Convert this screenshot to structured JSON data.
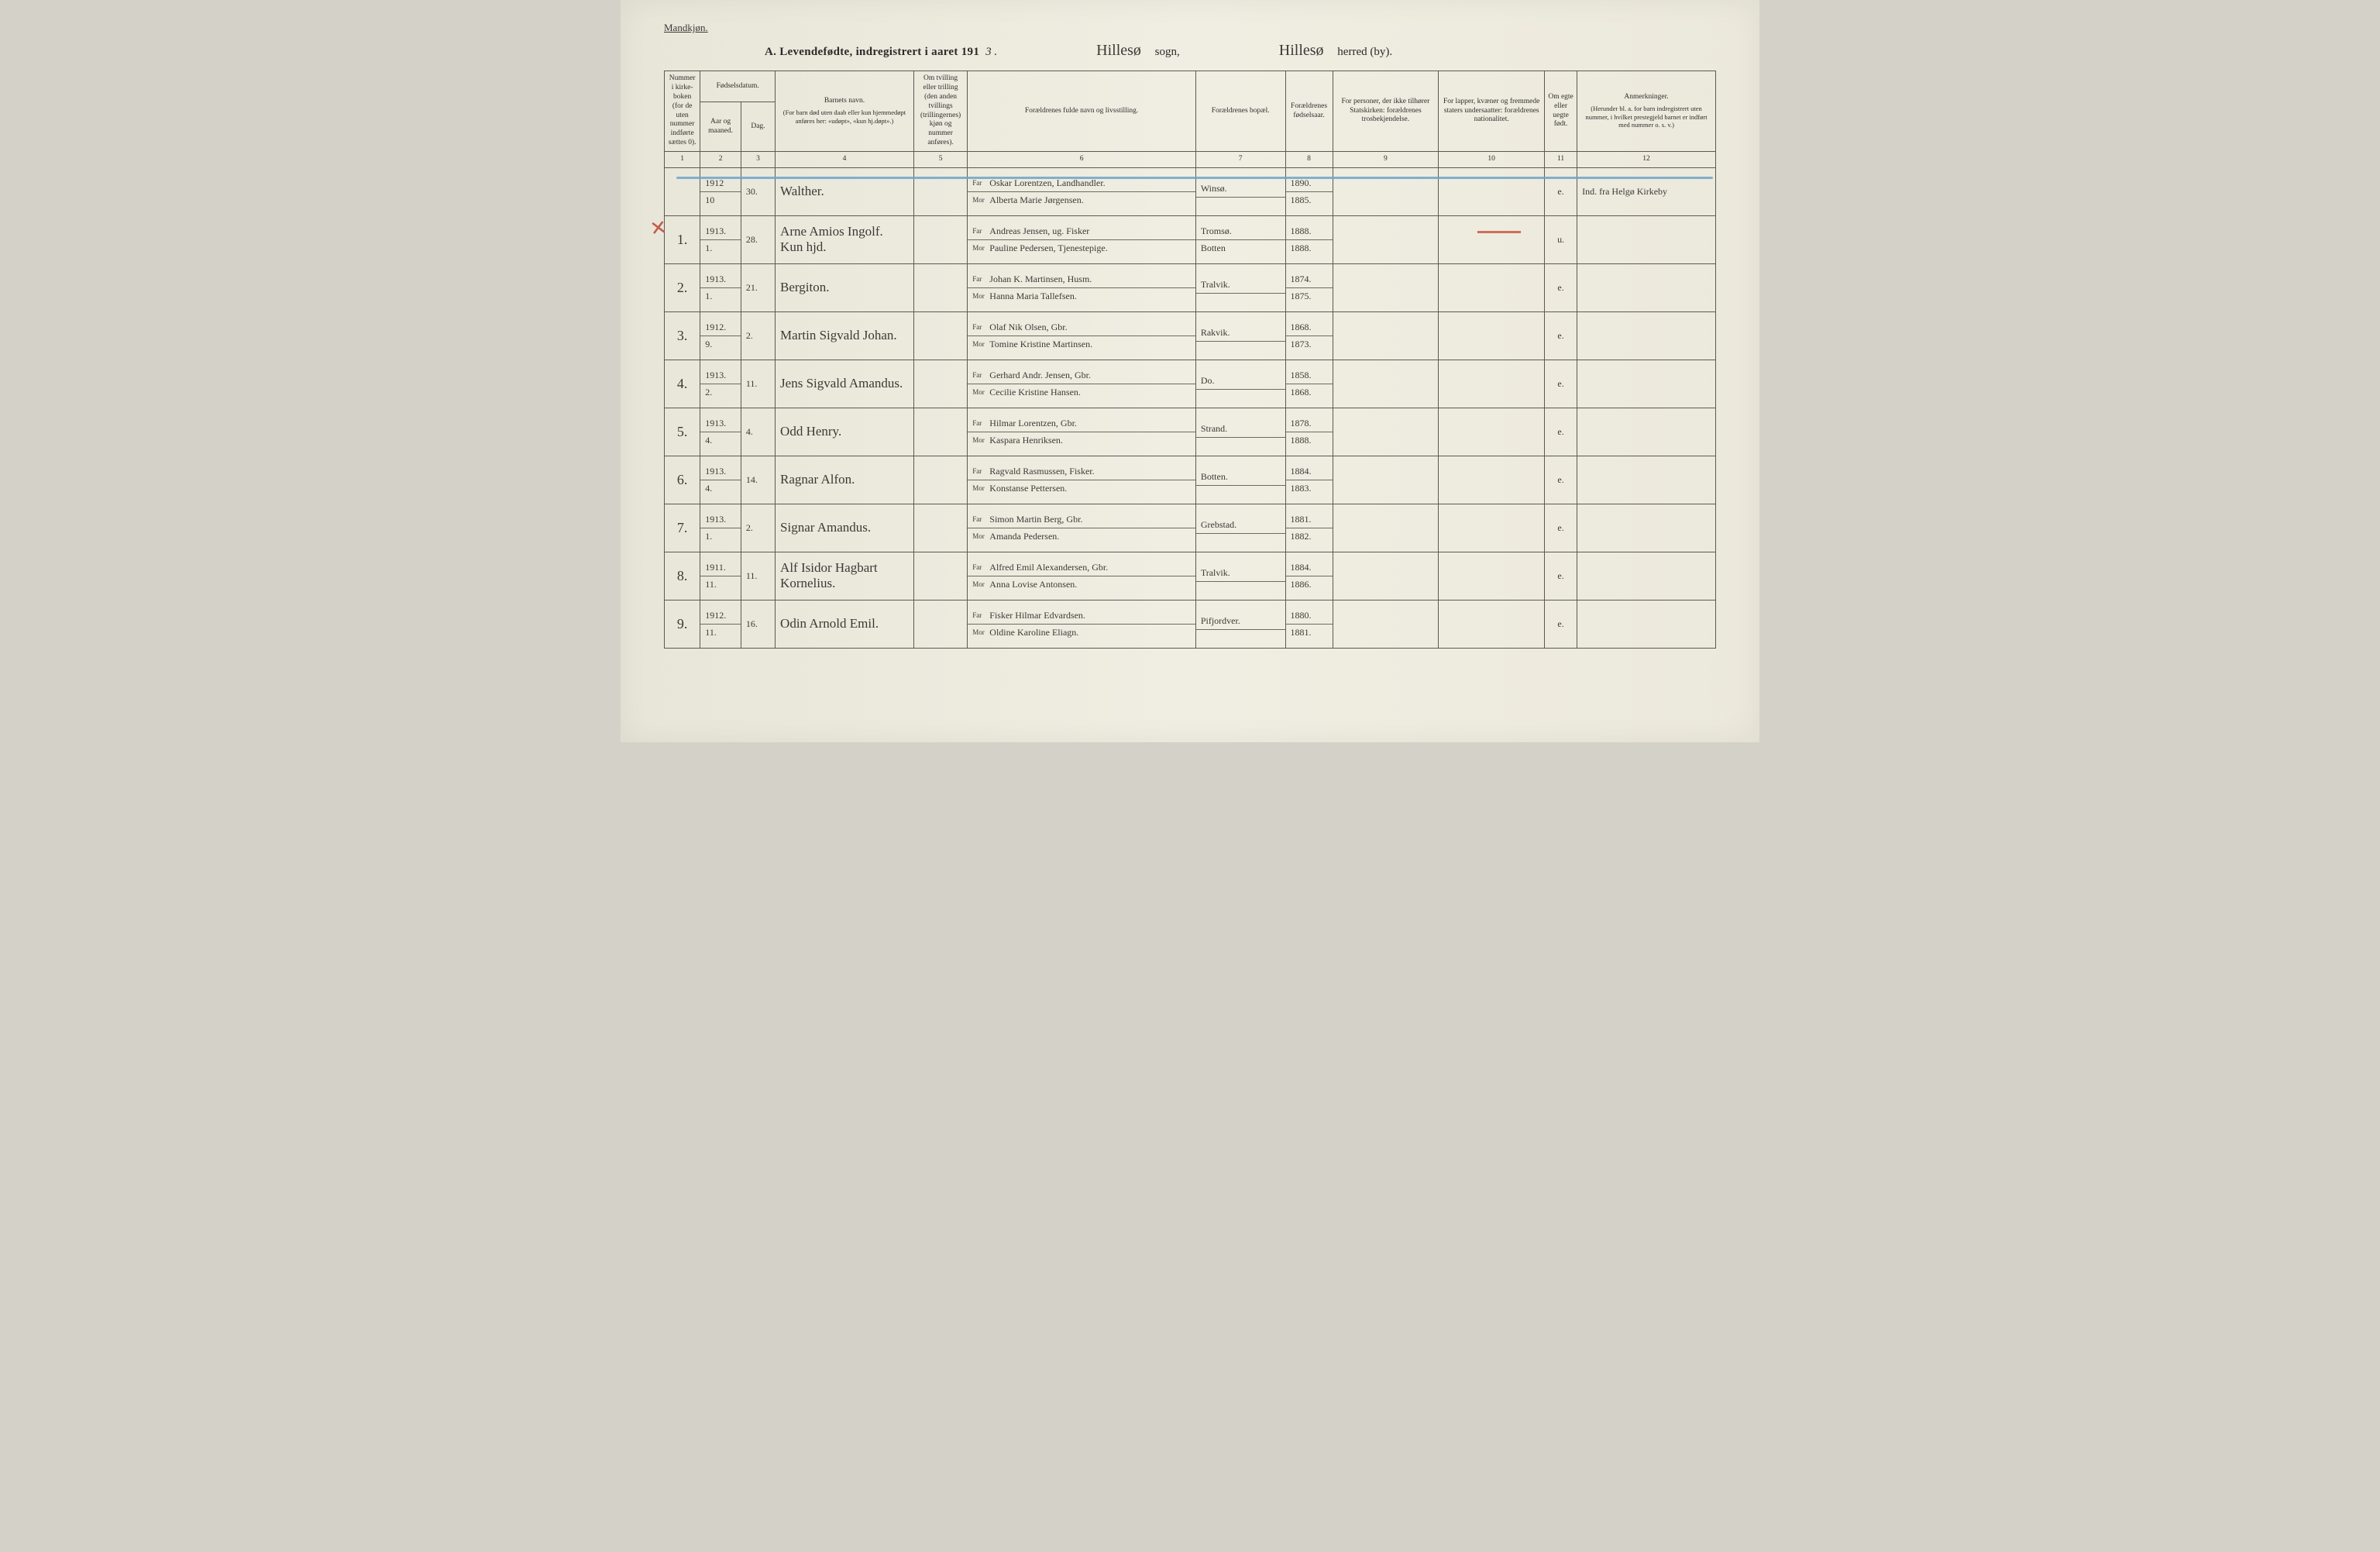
{
  "header": {
    "gender_label": "Mandkjøn.",
    "title_prefix": "A.  Levendefødte, indregistrert i aaret 191",
    "title_year_suffix": "3 .",
    "sogn_script": "Hillesø",
    "sogn_label": "sogn,",
    "herred_script": "Hillesø",
    "herred_label": "herred (by)."
  },
  "columns": {
    "c1": "Nummer i kirke­boken (for de uten nummer indførte sættes 0).",
    "c2_group": "Fødselsdatum.",
    "c2a": "Aar og maaned.",
    "c2b": "Dag.",
    "c4": "Barnets navn.",
    "c4_sub": "(For barn død uten daab eller kun hjemmedøpt anføres her: «udøpt», «kun hj.døpt».)",
    "c5": "Om tvilling eller trilling (den anden tvillings (trillingernes) kjøn og nummer anføres).",
    "c6": "Forældrenes fulde navn og livsstilling.",
    "c7": "Forældrenes bopæl.",
    "c8": "For­ældrenes fødsels­aar.",
    "c9": "For personer, der ikke tilhører Statskirken: forældrenes trosbekjendelse.",
    "c10": "For lapper, kvæner og fremmede staters under­saatter: forældrenes nationalitet.",
    "c11": "Om egte eller uegte født.",
    "c12": "Anmerkninger.",
    "c12_sub": "(Herunder bl. a. for barn indregistrert uten nummer, i hvilket prestegjeld barnet er indført med nummer o. s. v.)",
    "far_label": "Far",
    "mor_label": "Mor",
    "nums": [
      "1",
      "2",
      "3",
      "4",
      "5",
      "6",
      "7",
      "8",
      "9",
      "10",
      "11",
      "12"
    ]
  },
  "rows": [
    {
      "num": "",
      "year": "1912",
      "month": "10",
      "day": "30.",
      "child": "Walther.",
      "twin": "",
      "far": "Oskar Lorentzen, Landhandler.",
      "mor": "Alberta Marie Jørgensen.",
      "residence": "Winsø.",
      "fyear": "1890.",
      "myear": "1885.",
      "c9": "",
      "c10": "",
      "legit": "e.",
      "remarks": "Ind. fra Helgø Kirkeby"
    },
    {
      "num": "1.",
      "year": "1913.",
      "month": "1.",
      "day": "28.",
      "child": "Arne Amios Ingolf. Kun hjd.",
      "twin": "",
      "far": "Andreas Jensen, ug. Fisker",
      "mor": "Pauline Pedersen, Tjenestepige.",
      "residence": "Tromsø.",
      "residence2": "Botten",
      "fyear": "1888.",
      "myear": "1888.",
      "c9": "",
      "c10": "",
      "legit": "u.",
      "remarks": ""
    },
    {
      "num": "2.",
      "year": "1913.",
      "month": "1.",
      "day": "21.",
      "child": "Bergiton.",
      "twin": "",
      "far": "Johan K. Martinsen, Husm.",
      "mor": "Hanna Maria Tallefsen.",
      "residence": "Tralvik.",
      "fyear": "1874.",
      "myear": "1875.",
      "c9": "",
      "c10": "",
      "legit": "e.",
      "remarks": ""
    },
    {
      "num": "3.",
      "year": "1912.",
      "month": "9.",
      "day": "2.",
      "child": "Martin Sigvald Johan.",
      "twin": "",
      "far": "Olaf Nik Olsen, Gbr.",
      "mor": "Tomine Kristine Martinsen.",
      "residence": "Rakvik.",
      "fyear": "1868.",
      "myear": "1873.",
      "c9": "",
      "c10": "",
      "legit": "e.",
      "remarks": ""
    },
    {
      "num": "4.",
      "year": "1913.",
      "month": "2.",
      "day": "11.",
      "child": "Jens Sigvald Amandus.",
      "twin": "",
      "far": "Gerhard Andr. Jensen, Gbr.",
      "mor": "Cecilie Kristine Hansen.",
      "residence": "Do.",
      "fyear": "1858.",
      "myear": "1868.",
      "c9": "",
      "c10": "",
      "legit": "e.",
      "remarks": ""
    },
    {
      "num": "5.",
      "year": "1913.",
      "month": "4.",
      "day": "4.",
      "child": "Odd Henry.",
      "twin": "",
      "far": "Hilmar Lorentzen, Gbr.",
      "mor": "Kaspara Henriksen.",
      "residence": "Strand.",
      "fyear": "1878.",
      "myear": "1888.",
      "c9": "",
      "c10": "",
      "legit": "e.",
      "remarks": ""
    },
    {
      "num": "6.",
      "year": "1913.",
      "month": "4.",
      "day": "14.",
      "child": "Ragnar Alfon.",
      "twin": "",
      "far": "Ragvald Rasmussen, Fisker.",
      "mor": "Konstanse Pettersen.",
      "residence": "Botten.",
      "fyear": "1884.",
      "myear": "1883.",
      "c9": "",
      "c10": "",
      "legit": "e.",
      "remarks": ""
    },
    {
      "num": "7.",
      "year": "1913.",
      "month": "1.",
      "day": "2.",
      "child": "Signar Amandus.",
      "twin": "",
      "far": "Simon Martin Berg, Gbr.",
      "mor": "Amanda Pedersen.",
      "residence": "Grebstad.",
      "fyear": "1881.",
      "myear": "1882.",
      "c9": "",
      "c10": "",
      "legit": "e.",
      "remarks": ""
    },
    {
      "num": "8.",
      "year": "1911.",
      "month": "11.",
      "day": "11.",
      "child": "Alf Isidor Hagbart Kornelius.",
      "twin": "",
      "far": "Alfred Emil Alexandersen, Gbr.",
      "mor": "Anna Lovise Antonsen.",
      "residence": "Tralvik.",
      "fyear": "1884.",
      "myear": "1886.",
      "c9": "",
      "c10": "",
      "legit": "e.",
      "remarks": ""
    },
    {
      "num": "9.",
      "year": "1912.",
      "month": "11.",
      "day": "16.",
      "child": "Odin Arnold Emil.",
      "twin": "",
      "far": "Fisker Hilmar Edvardsen.",
      "mor": "Oldine Karoline Eliagn.",
      "residence": "Pifjordver.",
      "fyear": "1880.",
      "myear": "1881.",
      "c9": "",
      "c10": "",
      "legit": "e.",
      "remarks": ""
    }
  ]
}
